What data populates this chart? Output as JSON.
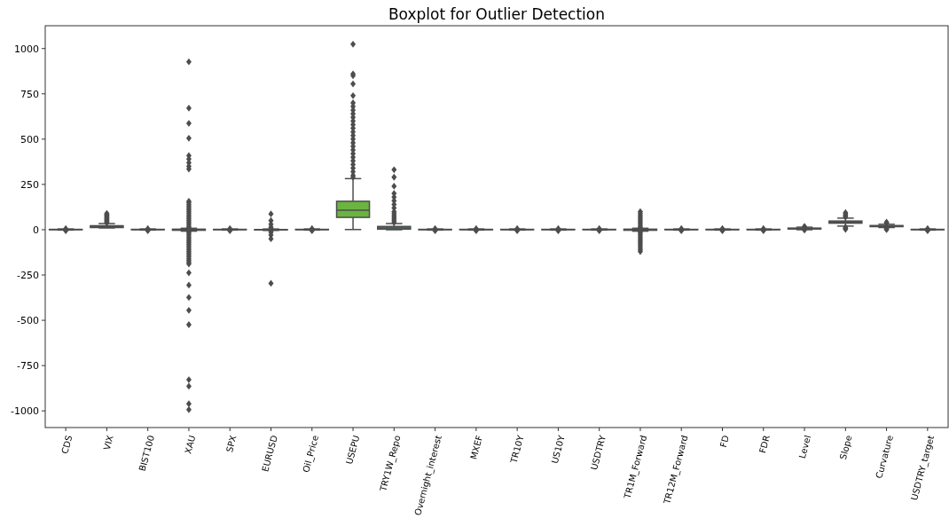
{
  "chart_data": {
    "type": "box",
    "title": "Boxplot for Outlier Detection",
    "categories": [
      "CDS",
      "VIX",
      "BIST100",
      "XAU",
      "SPX",
      "EURUSD",
      "Oil_Price",
      "USEPU",
      "TRY1W_Repo",
      "Overnight_interest",
      "MXEF",
      "TR10Y",
      "US10Y",
      "USDTRY",
      "TR1M_Forward",
      "TR12M_Forward",
      "FD",
      "FDR",
      "Level",
      "Slope",
      "Curvature",
      "USDTRY_target"
    ],
    "colors": [
      "#e8686b",
      "#e0763e",
      "#c58a3b",
      "#b0953a",
      "#9aa03a",
      "#82aa3a",
      "#6ab23f",
      "#6ab43f",
      "#3db36a",
      "#3db284",
      "#3eb096",
      "#3fafa7",
      "#40adb8",
      "#44a8cc",
      "#5aa0dc",
      "#7d96e2",
      "#9c8be4",
      "#b580e2",
      "#ca76d6",
      "#da6cc2",
      "#e466a9",
      "#e8678c"
    ],
    "boxes": [
      {
        "low": -2,
        "q1": 0,
        "median": 1,
        "q3": 2,
        "high": 4,
        "outliers": [
          -6,
          6
        ]
      },
      {
        "low": 10,
        "q1": 12,
        "median": 16,
        "q3": 22,
        "high": 34,
        "outliers": [
          38,
          42,
          46,
          50,
          54,
          58,
          62,
          66,
          70,
          74,
          78,
          82,
          86,
          90
        ]
      },
      {
        "low": -2,
        "q1": 0,
        "median": 1,
        "q3": 2,
        "high": 4,
        "outliers": [
          -6,
          6
        ]
      },
      {
        "low": -8,
        "q1": -3,
        "median": 0,
        "q3": 3,
        "high": 8,
        "outliers": [
          927,
          671,
          587,
          505,
          409,
          390,
          370,
          350,
          335,
          157,
          150,
          140,
          130,
          120,
          110,
          100,
          90,
          80,
          70,
          60,
          50,
          40,
          30,
          20,
          12,
          -12,
          -20,
          -30,
          -40,
          -50,
          -60,
          -70,
          -80,
          -90,
          -100,
          -110,
          -120,
          -130,
          -140,
          -150,
          -160,
          -170,
          -180,
          -189,
          -238,
          -306,
          -374,
          -445,
          -524,
          -828,
          -864,
          -961,
          -993
        ]
      },
      {
        "low": -2,
        "q1": 0,
        "median": 1,
        "q3": 2,
        "high": 4,
        "outliers": [
          -6,
          6
        ]
      },
      {
        "low": -4,
        "q1": -1,
        "median": 0,
        "q3": 1,
        "high": 4,
        "outliers": [
          87,
          50,
          30,
          15,
          8,
          -8,
          -15,
          -30,
          -50,
          -296
        ]
      },
      {
        "low": -2,
        "q1": 0,
        "median": 1,
        "q3": 2,
        "high": 4,
        "outliers": [
          -6,
          6
        ]
      },
      {
        "low": 1,
        "q1": 68,
        "median": 107,
        "q3": 157,
        "high": 282,
        "outliers": [
          1024,
          860,
          850,
          805,
          740,
          700,
          680,
          660,
          640,
          620,
          600,
          580,
          560,
          540,
          520,
          500,
          480,
          460,
          440,
          420,
          400,
          380,
          360,
          340,
          320,
          300,
          290
        ]
      },
      {
        "low": 0,
        "q1": 3,
        "median": 10,
        "q3": 18,
        "high": 34,
        "outliers": [
          331,
          290,
          240,
          200,
          180,
          160,
          140,
          120,
          100,
          90,
          80,
          70,
          60,
          50,
          40
        ]
      },
      {
        "low": -2,
        "q1": 0,
        "median": 1,
        "q3": 2,
        "high": 4,
        "outliers": [
          -6,
          6
        ]
      },
      {
        "low": -2,
        "q1": 0,
        "median": 1,
        "q3": 2,
        "high": 4,
        "outliers": [
          -6,
          6
        ]
      },
      {
        "low": -2,
        "q1": 0,
        "median": 1,
        "q3": 2,
        "high": 4,
        "outliers": [
          -6,
          6
        ]
      },
      {
        "low": -2,
        "q1": 0,
        "median": 1,
        "q3": 2,
        "high": 4,
        "outliers": [
          -6,
          -3,
          6
        ]
      },
      {
        "low": -2,
        "q1": 0,
        "median": 1,
        "q3": 2,
        "high": 4,
        "outliers": [
          -6,
          6
        ]
      },
      {
        "low": -8,
        "q1": -3,
        "median": 0,
        "q3": 3,
        "high": 8,
        "outliers": [
          100,
          90,
          80,
          70,
          60,
          50,
          40,
          30,
          20,
          12,
          -12,
          -20,
          -30,
          -40,
          -50,
          -60,
          -70,
          -80,
          -90,
          -100,
          -110,
          -120
        ]
      },
      {
        "low": -2,
        "q1": 0,
        "median": 1,
        "q3": 2,
        "high": 4,
        "outliers": [
          -6,
          6
        ]
      },
      {
        "low": -2,
        "q1": 0,
        "median": 1,
        "q3": 2,
        "high": 4,
        "outliers": [
          -6,
          6
        ]
      },
      {
        "low": -2,
        "q1": 0,
        "median": 1,
        "q3": 2,
        "high": 4,
        "outliers": [
          -6,
          6
        ]
      },
      {
        "low": 0,
        "q1": 4,
        "median": 6,
        "q3": 9,
        "high": 14,
        "outliers": [
          16,
          18,
          -2
        ]
      },
      {
        "low": 20,
        "q1": 36,
        "median": 43,
        "q3": 48,
        "high": 64,
        "outliers": [
          70,
          76,
          82,
          88,
          94,
          14,
          10,
          6,
          2
        ]
      },
      {
        "low": 12,
        "q1": 17,
        "median": 20,
        "q3": 23,
        "high": 30,
        "outliers": [
          34,
          38,
          42,
          8,
          4,
          0
        ]
      },
      {
        "low": -2,
        "q1": 0,
        "median": 1,
        "q3": 2,
        "high": 4,
        "outliers": [
          -6,
          6
        ]
      }
    ],
    "ylim": [
      -1092,
      1126
    ],
    "yticks": [
      -1000,
      -750,
      -500,
      -250,
      0,
      250,
      500,
      750,
      1000
    ],
    "grid": false,
    "marker": "diamond"
  }
}
